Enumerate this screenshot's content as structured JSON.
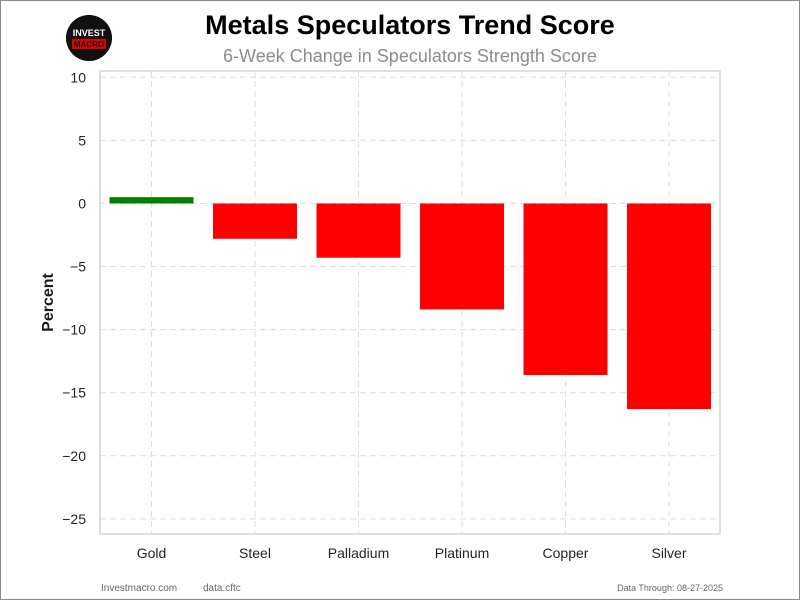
{
  "header": {
    "title": "Metals Speculators Trend Score",
    "subtitle": "6-Week Change in Speculators Strength Score",
    "logo_text_top": "INVEST",
    "logo_text_bottom": "MACRO"
  },
  "footer": {
    "site": "Investmacro.com",
    "source": "data:cftc",
    "data_through": "Data Through: 08-27-2025"
  },
  "chart_data": {
    "type": "bar",
    "title": "Metals Speculators Trend Score",
    "subtitle": "6-Week Change in Speculators Strength Score",
    "xlabel": "",
    "ylabel": "Percent",
    "categories": [
      "Gold",
      "Steel",
      "Palladium",
      "Platinum",
      "Copper",
      "Silver"
    ],
    "values": [
      0.5,
      -2.8,
      -4.3,
      -8.4,
      -13.6,
      -16.3
    ],
    "bar_colors": [
      "#008000",
      "#ff0000",
      "#ff0000",
      "#ff0000",
      "#ff0000",
      "#ff0000"
    ],
    "ylim": [
      -26.2,
      10.5
    ],
    "yticks": [
      10,
      5,
      0,
      -5,
      -10,
      -15,
      -20,
      -25
    ],
    "ytick_labels": [
      "10",
      "5",
      "0",
      "−5",
      "−10",
      "−15",
      "−20",
      "−25"
    ],
    "grid": true,
    "legend": "none"
  }
}
